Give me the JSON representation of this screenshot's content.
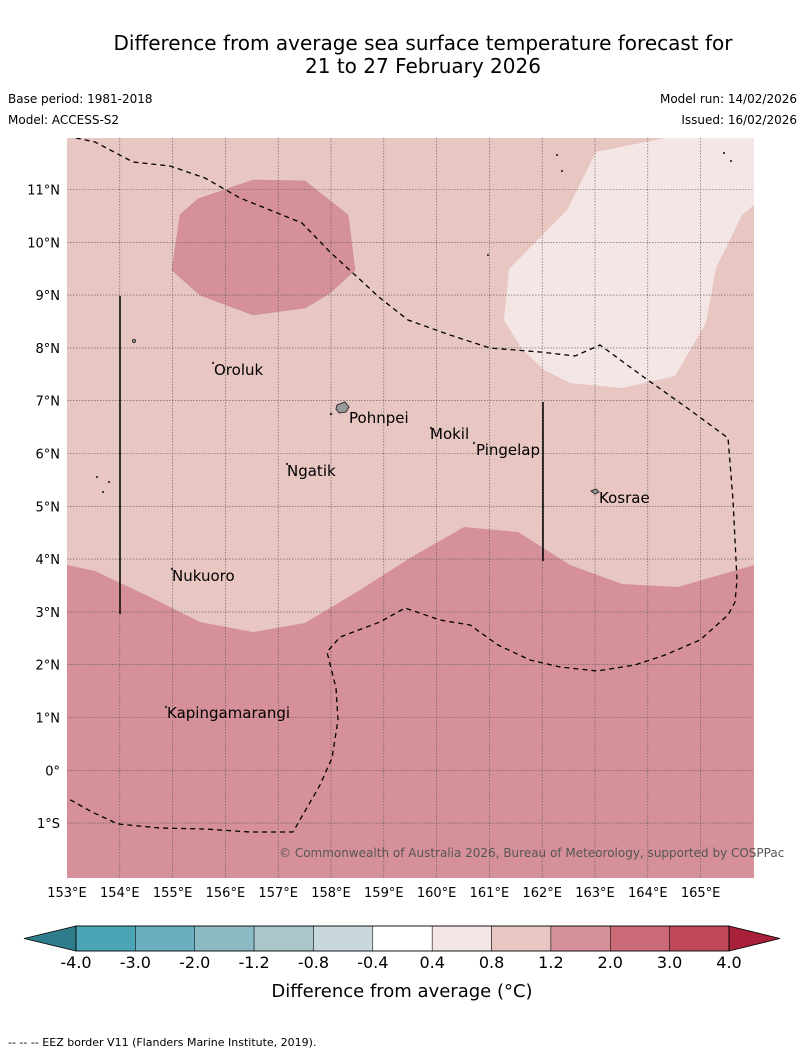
{
  "title": {
    "line1": "Difference from average sea surface temperature forecast for",
    "line2": "21 to 27 February 2026"
  },
  "meta": {
    "base_period": "Base period: 1981-2018",
    "model": "Model: ACCESS-S2",
    "model_run": "Model run: 14/02/2026",
    "issued": "Issued: 16/02/2026"
  },
  "lat_labels": [
    "11°N",
    "10°N",
    "9°N",
    "8°N",
    "7°N",
    "6°N",
    "5°N",
    "4°N",
    "3°N",
    "2°N",
    "1°N",
    "0°",
    "1°S"
  ],
  "lon_labels": [
    "153°E",
    "154°E",
    "155°E",
    "156°E",
    "157°E",
    "158°E",
    "159°E",
    "160°E",
    "161°E",
    "162°E",
    "163°E",
    "164°E",
    "165°E"
  ],
  "places": {
    "oroluk": "Oroluk",
    "pohnpei": "Pohnpei",
    "mokil": "Mokil",
    "pingelap": "Pingelap",
    "ngatik": "Ngatik",
    "kosrae": "Kosrae",
    "nukuoro": "Nukuoro",
    "kapingamarangi": "Kapingamarangi"
  },
  "credit": "© Commonwealth of Australia 2026, Bureau of Meteorology, supported by COSPPac",
  "colorbar": {
    "ticks": [
      "-4.0",
      "-3.0",
      "-2.0",
      "-1.2",
      "-0.8",
      "-0.4",
      "0.4",
      "0.8",
      "1.2",
      "2.0",
      "3.0",
      "4.0"
    ],
    "colors": [
      "#2e7d8c",
      "#4aa6b6",
      "#6aafbf",
      "#8bb9c4",
      "#a9c6ca",
      "#c9d8dc",
      "#ffffff",
      "#f4e6e5",
      "#e8c6c2",
      "#d6909a",
      "#cc6b78",
      "#c0485a",
      "#a8203a"
    ],
    "title": "Difference from average (°C)"
  },
  "legend": "--  --  -- EEZ border V11 (Flanders Marine Institute, 2019)."
}
